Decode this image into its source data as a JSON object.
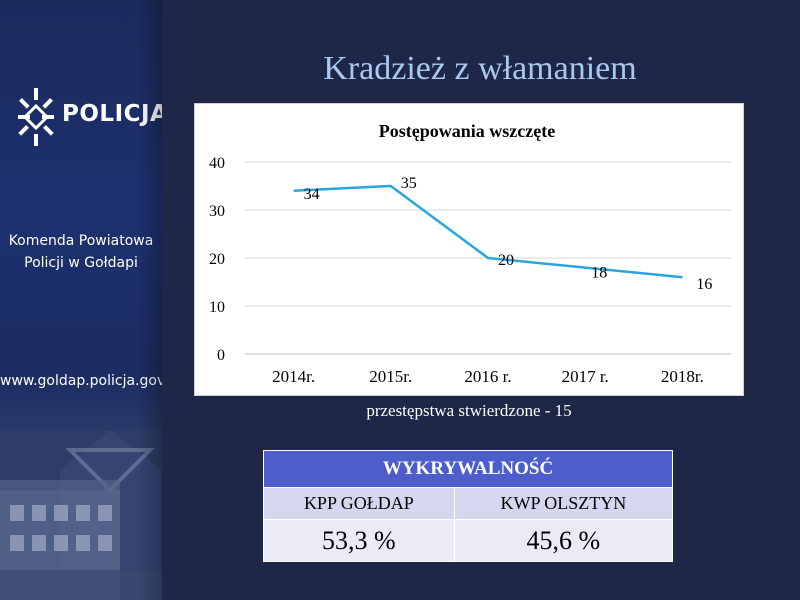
{
  "slide": {
    "title": "Kradzież z włamaniem"
  },
  "sidebar": {
    "logo_text": "POLICJA",
    "dept_line1": "Komenda Powiatowa",
    "dept_line2": "Policji w Gołdapi",
    "website": "www.goldap.policja.gov.pl"
  },
  "chart_data": {
    "type": "line",
    "title": "Postępowania wszczęte",
    "categories": [
      "2014r.",
      "2015r.",
      "2016 r.",
      "2017 r.",
      "2018r."
    ],
    "series": [
      {
        "values": [
          34,
          35,
          20,
          18,
          16
        ],
        "color": "#29a6dc"
      }
    ],
    "data_labels": [
      "34",
      "35",
      "20",
      "18",
      "16"
    ],
    "ylim": [
      0,
      40
    ],
    "yticks": [
      0,
      10,
      20,
      30,
      40
    ],
    "grid": true,
    "legend": "none"
  },
  "caption": "przestępstwa stwierdzone - 15",
  "table": {
    "header": "WYKRYWALNOŚĆ",
    "columns": [
      "KPP  GOŁDAP",
      "KWP OLSZTYN"
    ],
    "values": [
      "53,3 %",
      "45,6 %"
    ]
  },
  "colors": {
    "background": "#1e2748",
    "title": "#a8c8ef",
    "line": "#29a6dc",
    "table_header": "#4d5dcc"
  }
}
